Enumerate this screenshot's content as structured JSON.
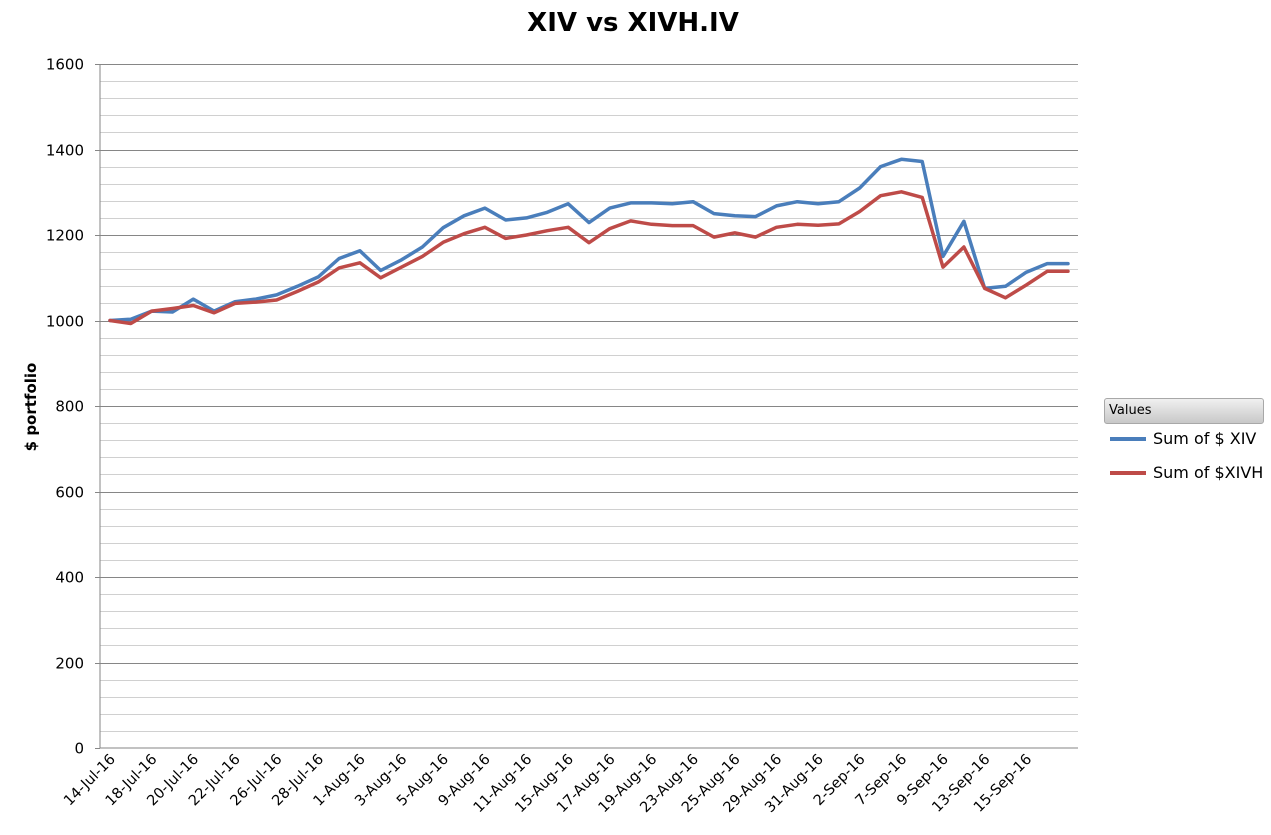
{
  "chart_data": {
    "type": "line",
    "title": "XIV vs XIVH.IV",
    "xlabel": "",
    "ylabel": "$ portfolio",
    "ylim": [
      0,
      1600
    ],
    "yticks": [
      0,
      200,
      400,
      600,
      800,
      1000,
      1200,
      1400,
      1600
    ],
    "minor_grid_step": 40,
    "grid": true,
    "legend_position": "right",
    "legend_title": "Values",
    "x_tick_labels": [
      "14-Jul-16",
      "18-Jul-16",
      "20-Jul-16",
      "22-Jul-16",
      "26-Jul-16",
      "28-Jul-16",
      "1-Aug-16",
      "3-Aug-16",
      "5-Aug-16",
      "9-Aug-16",
      "11-Aug-16",
      "15-Aug-16",
      "17-Aug-16",
      "19-Aug-16",
      "23-Aug-16",
      "25-Aug-16",
      "29-Aug-16",
      "31-Aug-16",
      "2-Sep-16",
      "7-Sep-16",
      "9-Sep-16",
      "13-Sep-16",
      "15-Sep-16"
    ],
    "x": [
      "14-Jul-16",
      "15-Jul-16",
      "18-Jul-16",
      "19-Jul-16",
      "20-Jul-16",
      "21-Jul-16",
      "22-Jul-16",
      "25-Jul-16",
      "26-Jul-16",
      "27-Jul-16",
      "28-Jul-16",
      "29-Jul-16",
      "1-Aug-16",
      "2-Aug-16",
      "3-Aug-16",
      "4-Aug-16",
      "5-Aug-16",
      "8-Aug-16",
      "9-Aug-16",
      "10-Aug-16",
      "11-Aug-16",
      "12-Aug-16",
      "15-Aug-16",
      "16-Aug-16",
      "17-Aug-16",
      "18-Aug-16",
      "19-Aug-16",
      "22-Aug-16",
      "23-Aug-16",
      "24-Aug-16",
      "25-Aug-16",
      "26-Aug-16",
      "29-Aug-16",
      "30-Aug-16",
      "31-Aug-16",
      "1-Sep-16",
      "2-Sep-16",
      "6-Sep-16",
      "7-Sep-16",
      "8-Sep-16",
      "9-Sep-16",
      "12-Sep-16",
      "13-Sep-16",
      "14-Sep-16",
      "15-Sep-16",
      "16-Sep-16",
      "19-Sep-16"
    ],
    "series": [
      {
        "name": "Sum of $ XIV",
        "color": "#4a7ebb",
        "values": [
          1000,
          1003,
          1022,
          1020,
          1050,
          1022,
          1044,
          1050,
          1060,
          1080,
          1102,
          1145,
          1163,
          1117,
          1142,
          1172,
          1217,
          1245,
          1263,
          1235,
          1240,
          1253,
          1273,
          1229,
          1263,
          1275,
          1275,
          1273,
          1278,
          1250,
          1245,
          1243,
          1268,
          1278,
          1273,
          1278,
          1310,
          1360,
          1377,
          1372,
          1150,
          1232,
          1075,
          1080,
          1113,
          1133,
          1133
        ]
      },
      {
        "name": "Sum of $XIVH",
        "color": "#be4b48",
        "values": [
          1000,
          993,
          1022,
          1028,
          1035,
          1018,
          1040,
          1043,
          1048,
          1068,
          1090,
          1123,
          1135,
          1100,
          1125,
          1150,
          1183,
          1203,
          1218,
          1192,
          1200,
          1210,
          1218,
          1182,
          1215,
          1233,
          1225,
          1222,
          1222,
          1195,
          1205,
          1195,
          1218,
          1225,
          1223,
          1226,
          1255,
          1292,
          1301,
          1288,
          1125,
          1172,
          1075,
          1053,
          1083,
          1115,
          1115
        ]
      }
    ]
  }
}
